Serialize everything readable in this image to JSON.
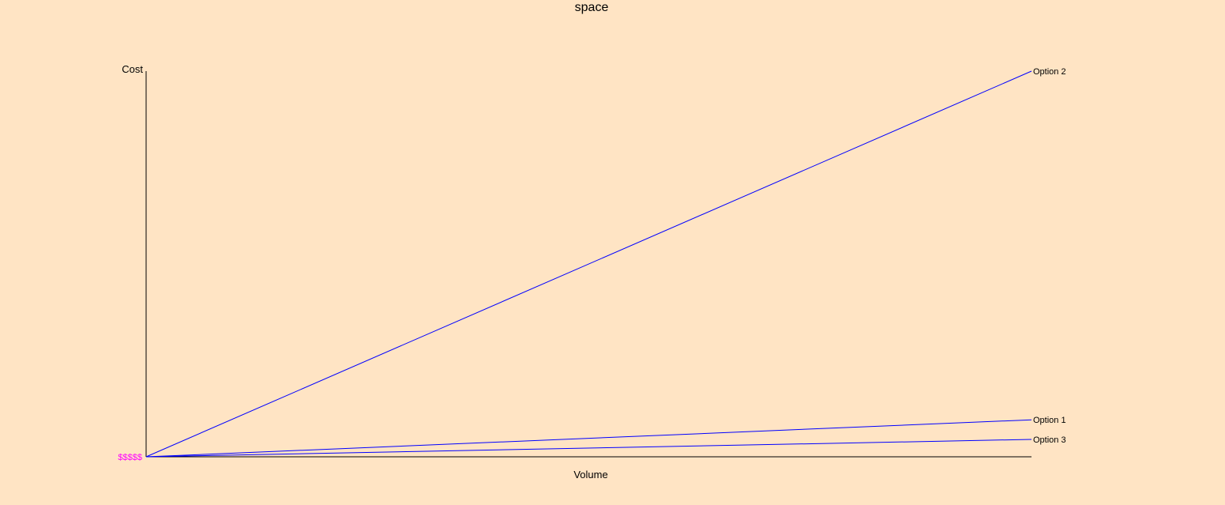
{
  "chart_data": {
    "type": "line",
    "title": "space",
    "xlabel": "Volume",
    "ylabel": "Cost",
    "xlim": [
      0,
      1
    ],
    "ylim": [
      0,
      1
    ],
    "grid": false,
    "legend": "none",
    "x": [
      0,
      1
    ],
    "series": [
      {
        "name": "Option 1",
        "values": [
          0,
          0.096
        ]
      },
      {
        "name": "Option 2",
        "values": [
          0,
          1.0
        ]
      },
      {
        "name": "Option 3",
        "values": [
          0,
          0.045
        ]
      }
    ],
    "overlapping_tick_labels_text": "$$$$$",
    "colors": {
      "background": "#FFE4C4",
      "axis": "#000000",
      "series_line": "#0000FF",
      "tick_label": "#FF00FF"
    }
  }
}
